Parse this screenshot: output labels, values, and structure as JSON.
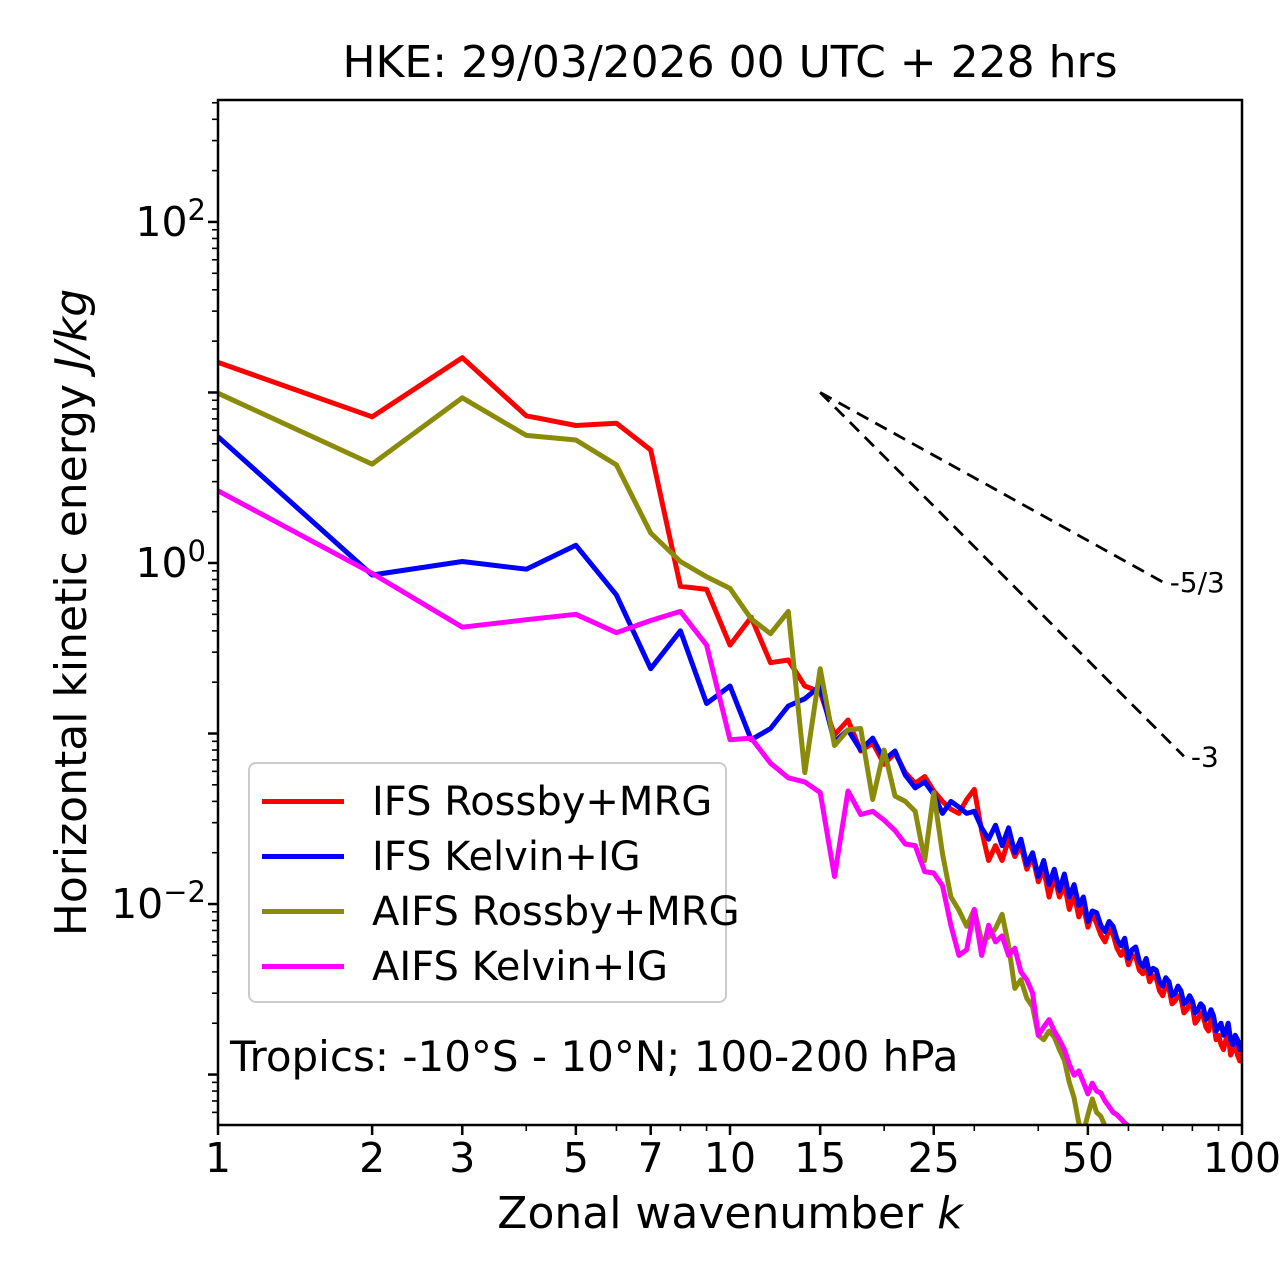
{
  "title": "HKE: 29/03/2026 00 UTC + 228 hrs",
  "annotation": "Tropics: -10°S - 10°N; 100-200 hPa",
  "axes": {
    "xlabel": {
      "text": "Zonal wavenumber ",
      "math": "k"
    },
    "ylabel": {
      "text": "Horizontal kinetic energy ",
      "math": "J/kg"
    },
    "x_ticks": {
      "major": [
        1,
        2,
        3,
        5,
        7,
        10,
        15,
        25,
        50,
        100
      ],
      "labels": [
        "1",
        "2",
        "3",
        "5",
        "7",
        "10",
        "15",
        "25",
        "50",
        "100"
      ],
      "minor": [
        4,
        6,
        8,
        9,
        20,
        30,
        40,
        60,
        70,
        80,
        90
      ]
    },
    "y_ticks": {
      "major_exponents": [
        2,
        1,
        0,
        -1,
        -2,
        -3
      ],
      "labeled": [
        {
          "exp": 2,
          "base": "10",
          "sup": "2"
        },
        {
          "exp": 0,
          "base": "10",
          "sup": "0"
        },
        {
          "exp": -2,
          "base": "10",
          "sup": "−2"
        }
      ]
    }
  },
  "chart_data": {
    "type": "line",
    "title": "HKE: 29/03/2026 00 UTC + 228 hrs",
    "xlabel": "Zonal wavenumber k",
    "ylabel": "Horizontal kinetic energy J/kg",
    "xscale": "log",
    "yscale": "log",
    "xlim": [
      1,
      100
    ],
    "ylim": [
      0.000506,
      519
    ],
    "grid": false,
    "legend_position": "lower-left",
    "region_label": "Tropics: -10°S - 10°N; 100-200 hPa",
    "series": [
      {
        "name": "IFS Rossby+MRG",
        "color": "#ff0000",
        "k_start": 1,
        "values": [
          15,
          7.2,
          16,
          7.3,
          6.4,
          6.6,
          4.6,
          0.73,
          0.7,
          0.33,
          0.48,
          0.26,
          0.27,
          0.19,
          0.175,
          0.098,
          0.12,
          0.079,
          0.088,
          0.066,
          0.077,
          0.059,
          0.051,
          0.056,
          0.046,
          0.04,
          0.036,
          0.034,
          0.041,
          0.047,
          0.027,
          0.018,
          0.022,
          0.018,
          0.024,
          0.019,
          0.022,
          0.016,
          0.019,
          0.0135,
          0.016,
          0.011,
          0.0145,
          0.011,
          0.013,
          0.0093,
          0.0115,
          0.0084,
          0.0097,
          0.0073,
          0.0088,
          0.0077,
          0.0066,
          0.006,
          0.0071,
          0.0066,
          0.0055,
          0.005,
          0.0055,
          0.0044,
          0.005,
          0.0049,
          0.0041,
          0.0039,
          0.0043,
          0.0035,
          0.0038,
          0.0037,
          0.0031,
          0.0029,
          0.0033,
          0.0032,
          0.0026,
          0.0027,
          0.0029,
          0.0028,
          0.0023,
          0.0024,
          0.0026,
          0.0025,
          0.002,
          0.0021,
          0.0023,
          0.0022,
          0.0019,
          0.0018,
          0.0021,
          0.002,
          0.0016,
          0.0017,
          0.0015,
          0.0014,
          0.0016,
          0.0017,
          0.0013,
          0.0014,
          0.0015,
          0.0013,
          0.0012,
          0.00135
        ]
      },
      {
        "name": "IFS Kelvin+IG",
        "color": "#0000ff",
        "k_start": 1,
        "values": [
          5.5,
          0.85,
          1.02,
          0.92,
          1.27,
          0.65,
          0.24,
          0.4,
          0.15,
          0.19,
          0.092,
          0.107,
          0.145,
          0.16,
          0.19,
          0.089,
          0.105,
          0.08,
          0.094,
          0.07,
          0.079,
          0.057,
          0.048,
          0.052,
          0.044,
          0.034,
          0.04,
          0.037,
          0.034,
          0.035,
          0.028,
          0.024,
          0.029,
          0.022,
          0.028,
          0.02,
          0.024,
          0.017,
          0.02,
          0.0145,
          0.018,
          0.013,
          0.016,
          0.012,
          0.015,
          0.011,
          0.013,
          0.0098,
          0.011,
          0.0079,
          0.0091,
          0.0089,
          0.0075,
          0.0069,
          0.0079,
          0.0074,
          0.0062,
          0.0057,
          0.0063,
          0.0048,
          0.0054,
          0.0056,
          0.0046,
          0.0043,
          0.0048,
          0.0039,
          0.0042,
          0.0041,
          0.0035,
          0.0033,
          0.0037,
          0.0035,
          0.0029,
          0.003,
          0.0033,
          0.0031,
          0.0026,
          0.0027,
          0.0029,
          0.0027,
          0.0023,
          0.0024,
          0.0026,
          0.0025,
          0.0021,
          0.0022,
          0.0024,
          0.0022,
          0.0018,
          0.0019,
          0.002,
          0.0017,
          0.0018,
          0.002,
          0.0016,
          0.0015,
          0.0017,
          0.0016,
          0.0014,
          0.00155
        ]
      },
      {
        "name": "AIFS Rossby+MRG",
        "color": "#8b8b0b",
        "k_start": 1,
        "values": [
          9.9,
          3.8,
          9.3,
          5.6,
          5.26,
          3.76,
          1.5,
          1.02,
          0.83,
          0.71,
          0.47,
          0.385,
          0.52,
          0.059,
          0.24,
          0.085,
          0.105,
          0.107,
          0.041,
          0.08,
          0.043,
          0.04,
          0.035,
          0.018,
          0.045,
          0.0197,
          0.011,
          0.0092,
          0.0074,
          0.0093,
          0.0061,
          0.0064,
          0.0072,
          0.0087,
          0.0057,
          0.0032,
          0.0036,
          0.0028,
          0.0025,
          0.0017,
          0.0016,
          0.0018,
          0.00166,
          0.0014,
          0.00121,
          0.0009,
          0.00073,
          0.00052,
          0.00046,
          0.00058,
          0.00072,
          0.0006,
          0.00057,
          0.0005,
          0.00044,
          0.0004
        ]
      },
      {
        "name": "AIFS Kelvin+IG",
        "color": "#ff00ff",
        "k_start": 1,
        "values": [
          2.65,
          0.87,
          0.42,
          0.465,
          0.5,
          0.39,
          0.46,
          0.52,
          0.33,
          0.092,
          0.094,
          0.067,
          0.055,
          0.052,
          0.045,
          0.0145,
          0.046,
          0.0335,
          0.035,
          0.031,
          0.027,
          0.0225,
          0.022,
          0.0155,
          0.0152,
          0.0128,
          0.0075,
          0.005,
          0.0054,
          0.0093,
          0.005,
          0.0075,
          0.006,
          0.0065,
          0.005,
          0.0055,
          0.004,
          0.0036,
          0.003,
          0.0017,
          0.0019,
          0.0021,
          0.0018,
          0.0016,
          0.0014,
          0.00115,
          0.00099,
          0.00105,
          0.0009,
          0.00077,
          0.00089,
          0.0008,
          0.00078,
          0.0007,
          0.00065,
          0.0006,
          0.00058,
          0.00055,
          0.00052,
          0.0005,
          0.00048,
          0.00045,
          0.00042
        ]
      }
    ],
    "reference_lines": [
      {
        "label": "-5/3",
        "slope": -1.667,
        "k": [
          15,
          70
        ],
        "v": [
          10,
          0.774
        ],
        "style": "dashed",
        "color": "#000000"
      },
      {
        "label": "-3",
        "slope": -3.0,
        "k": [
          15,
          77
        ],
        "v": [
          10,
          0.0735
        ],
        "style": "dashed",
        "color": "#000000"
      }
    ]
  },
  "colors": {
    "background": "#ffffff",
    "text": "#000000",
    "spine": "#000000",
    "legend_border": "#cccccc"
  }
}
